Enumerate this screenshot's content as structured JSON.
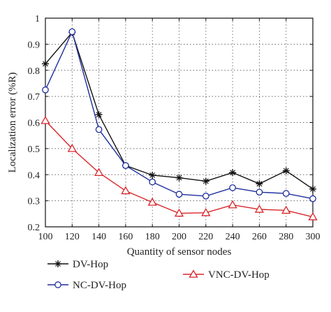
{
  "chart_data": {
    "type": "line",
    "xlabel": "Quantity of sensor nodes",
    "ylabel": "Localization error (%R)",
    "xlim": [
      100,
      300
    ],
    "ylim": [
      0.2,
      1.0
    ],
    "x_ticks": [
      100,
      120,
      140,
      160,
      180,
      200,
      220,
      240,
      260,
      280,
      300
    ],
    "y_ticks": [
      "0.2",
      "0.3",
      "0.4",
      "0.5",
      "0.6",
      "0.7",
      "0.8",
      "0.9",
      "1"
    ],
    "grid": true,
    "legend_placement": "bottom",
    "x": [
      100,
      120,
      140,
      160,
      180,
      200,
      220,
      240,
      260,
      280,
      300
    ],
    "series": [
      {
        "name": "DV-Hop",
        "color": "#111111",
        "marker": "star",
        "values": [
          0.825,
          0.945,
          0.63,
          0.435,
          0.398,
          0.388,
          0.375,
          0.408,
          0.365,
          0.415,
          0.345
        ]
      },
      {
        "name": "NC-DV-Hop",
        "color": "#1f2f9c",
        "marker": "circle",
        "values": [
          0.725,
          0.948,
          0.573,
          0.435,
          0.372,
          0.325,
          0.318,
          0.35,
          0.333,
          0.328,
          0.308
        ]
      },
      {
        "name": "VNC-DV-Hop",
        "color": "#d8262a",
        "marker": "triangle",
        "values": [
          0.607,
          0.5,
          0.408,
          0.338,
          0.294,
          0.252,
          0.254,
          0.284,
          0.267,
          0.263,
          0.238
        ]
      }
    ]
  }
}
